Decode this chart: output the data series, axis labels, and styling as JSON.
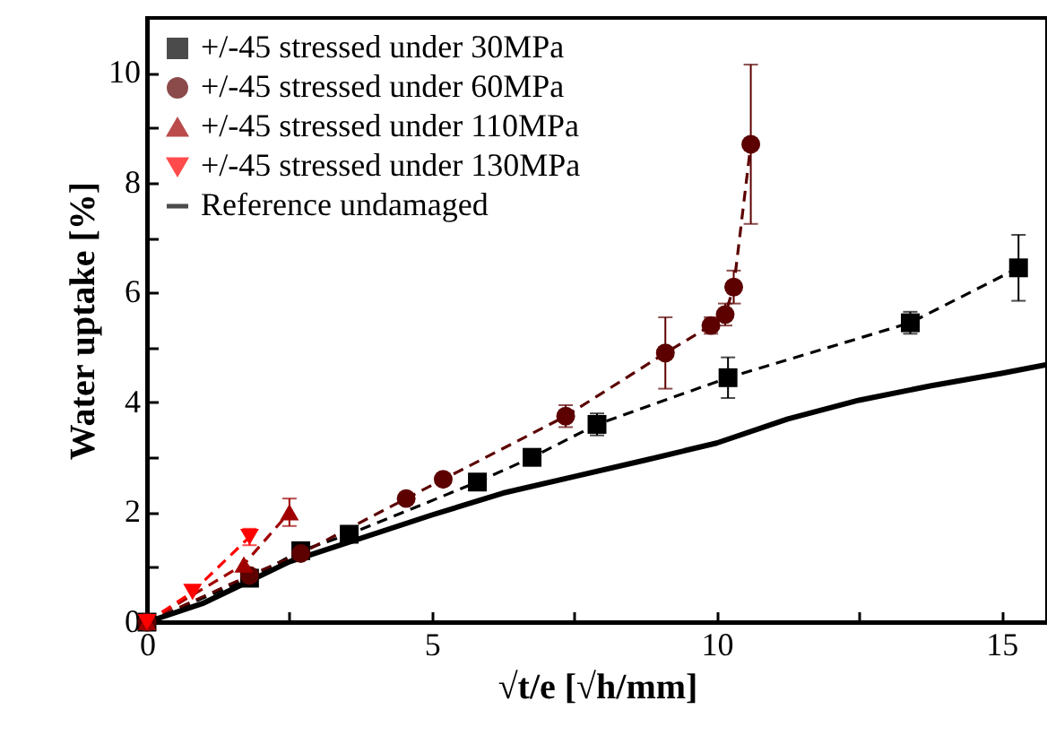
{
  "chart_data": {
    "type": "line",
    "xlabel": "√t/e [√h/mm]",
    "ylabel": "Water uptake [%]",
    "xlim": [
      0,
      15.8
    ],
    "xticks": [
      0,
      {
        "value": 2.5,
        "label": null
      },
      5,
      {
        "value": 7.5,
        "label": null
      },
      10,
      {
        "value": 12.5,
        "label": null
      },
      15
    ],
    "ylim": [
      0,
      11
    ],
    "yticks": [
      0,
      {
        "value": 1,
        "label": null
      },
      2,
      {
        "value": 3,
        "label": null
      },
      4,
      {
        "value": 5,
        "label": null
      },
      6,
      {
        "value": 7,
        "label": null
      },
      8,
      {
        "value": 9,
        "label": null
      },
      10
    ],
    "legend": "top left",
    "grid": false,
    "series": [
      {
        "name": "+/-45 stressed under 30MPa",
        "color": "#000000",
        "marker": "square",
        "line_style": "dashed",
        "x": [
          0,
          1.8,
          2.7,
          3.55,
          5.8,
          6.76,
          7.9,
          10.2,
          13.4,
          15.3
        ],
        "values": [
          0,
          0.8,
          1.3,
          1.6,
          2.55,
          3.0,
          3.6,
          4.45,
          5.45,
          6.45
        ],
        "errors": [
          null,
          null,
          null,
          null,
          null,
          null,
          0.2,
          0.37,
          0.2,
          0.6
        ]
      },
      {
        "name": "+/-45 stressed under 60MPa",
        "color": "#5c0000",
        "marker": "circle",
        "line_style": "dashed",
        "x": [
          0,
          1.8,
          2.7,
          4.55,
          5.2,
          7.35,
          9.1,
          9.9,
          10.15,
          10.3,
          10.6
        ],
        "values": [
          0,
          0.85,
          1.25,
          2.25,
          2.6,
          3.75,
          4.9,
          5.4,
          5.6,
          6.1,
          8.7
        ],
        "errors": [
          null,
          null,
          null,
          null,
          null,
          0.2,
          0.65,
          0.15,
          0.2,
          0.3,
          1.45
        ]
      },
      {
        "name": "+/-45 stressed under 110MPa",
        "color": "#a00000",
        "marker": "triangle",
        "line_style": "dashed",
        "x": [
          0,
          1.7,
          2.5
        ],
        "values": [
          0,
          1.05,
          2.0
        ],
        "errors": [
          null,
          null,
          0.25
        ]
      },
      {
        "name": "+/-45 stressed under 130MPa",
        "color": "#ff0000",
        "marker": "triangle-down",
        "line_style": "dashed",
        "x": [
          0,
          0.8,
          1.8
        ],
        "values": [
          0,
          0.55,
          1.55
        ],
        "errors": [
          null,
          null,
          0.15
        ]
      },
      {
        "name": "Reference undamaged",
        "color": "#000000",
        "marker": "none",
        "line_style": "solid",
        "x": [
          0,
          1,
          2.5,
          5,
          6.25,
          7.5,
          8.75,
          10,
          11.25,
          12.5,
          13.75,
          15,
          15.8
        ],
        "values": [
          0,
          0.35,
          1.1,
          1.95,
          2.35,
          2.65,
          2.95,
          3.26,
          3.7,
          4.04,
          4.3,
          4.53,
          4.69
        ]
      }
    ]
  }
}
